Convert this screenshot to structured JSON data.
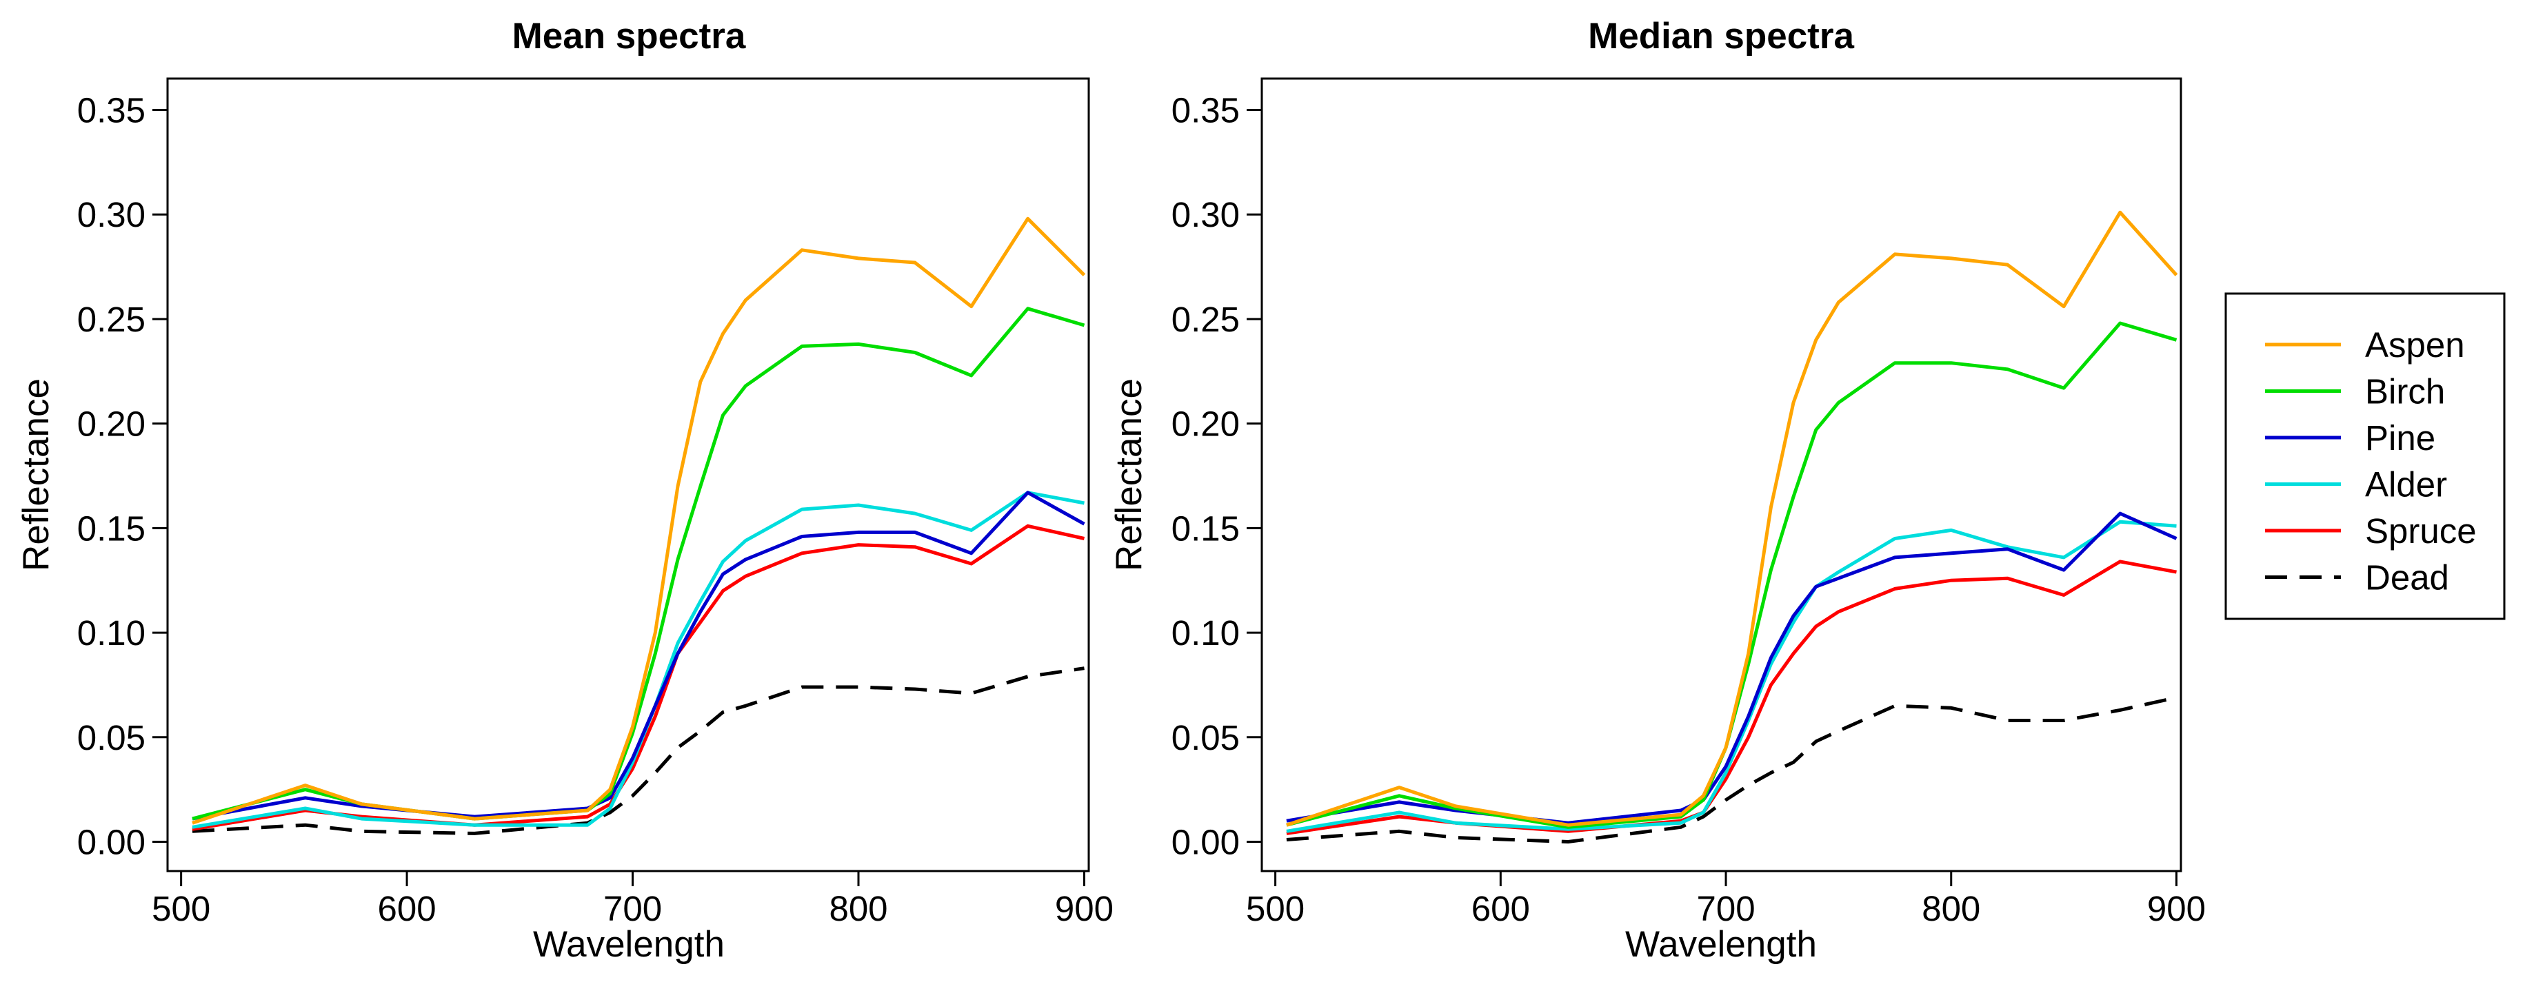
{
  "chart_data": [
    {
      "type": "line",
      "title": "Mean spectra",
      "xlabel": "Wavelength",
      "ylabel": "Reflectance",
      "xlim": [
        494,
        902
      ],
      "ylim": [
        -0.014,
        0.365
      ],
      "xticks": [
        500,
        600,
        700,
        800,
        900
      ],
      "xtick_labels": [
        "500",
        "600",
        "700",
        "800",
        "900"
      ],
      "yticks": [
        0.0,
        0.05,
        0.1,
        0.15,
        0.2,
        0.25,
        0.3,
        0.35
      ],
      "ytick_labels": [
        "0.00",
        "0.05",
        "0.10",
        "0.15",
        "0.20",
        "0.25",
        "0.30",
        "0.35"
      ],
      "x": [
        505,
        555,
        580,
        630,
        680,
        690,
        700,
        710,
        720,
        730,
        740,
        750,
        775,
        800,
        825,
        850,
        875,
        900
      ],
      "series": [
        {
          "name": "Aspen",
          "values": [
            0.009,
            0.027,
            0.018,
            0.011,
            0.015,
            0.025,
            0.055,
            0.1,
            0.17,
            0.22,
            0.243,
            0.259,
            0.283,
            0.279,
            0.277,
            0.256,
            0.298,
            0.271
          ]
        },
        {
          "name": "Birch",
          "values": [
            0.011,
            0.025,
            0.018,
            0.011,
            0.015,
            0.023,
            0.052,
            0.09,
            0.135,
            0.17,
            0.204,
            0.218,
            0.237,
            0.238,
            0.234,
            0.223,
            0.255,
            0.247
          ]
        },
        {
          "name": "Pine",
          "values": [
            0.011,
            0.021,
            0.017,
            0.012,
            0.016,
            0.021,
            0.04,
            0.065,
            0.09,
            0.11,
            0.128,
            0.135,
            0.146,
            0.148,
            0.148,
            0.138,
            0.167,
            0.152
          ]
        },
        {
          "name": "Alder",
          "values": [
            0.007,
            0.016,
            0.011,
            0.008,
            0.008,
            0.016,
            0.038,
            0.065,
            0.095,
            0.115,
            0.134,
            0.144,
            0.159,
            0.161,
            0.157,
            0.149,
            0.167,
            0.162
          ]
        },
        {
          "name": "Spruce",
          "values": [
            0.006,
            0.015,
            0.012,
            0.008,
            0.012,
            0.018,
            0.035,
            0.06,
            0.09,
            0.105,
            0.12,
            0.127,
            0.138,
            0.142,
            0.141,
            0.133,
            0.151,
            0.145
          ]
        },
        {
          "name": "Dead",
          "values": [
            0.005,
            0.008,
            0.005,
            0.004,
            0.009,
            0.014,
            0.022,
            0.033,
            0.045,
            0.053,
            0.062,
            0.065,
            0.074,
            0.074,
            0.073,
            0.071,
            0.079,
            0.083
          ]
        }
      ]
    },
    {
      "type": "line",
      "title": "Median spectra",
      "xlabel": "Wavelength",
      "ylabel": "Reflectance",
      "xlim": [
        494,
        902
      ],
      "ylim": [
        -0.014,
        0.365
      ],
      "xticks": [
        500,
        600,
        700,
        800,
        900
      ],
      "xtick_labels": [
        "500",
        "600",
        "700",
        "800",
        "900"
      ],
      "yticks": [
        0.0,
        0.05,
        0.1,
        0.15,
        0.2,
        0.25,
        0.3,
        0.35
      ],
      "ytick_labels": [
        "0.00",
        "0.05",
        "0.10",
        "0.15",
        "0.20",
        "0.25",
        "0.30",
        "0.35"
      ],
      "x": [
        505,
        555,
        580,
        630,
        680,
        690,
        700,
        710,
        720,
        730,
        740,
        750,
        775,
        800,
        825,
        850,
        875,
        900
      ],
      "series": [
        {
          "name": "Aspen",
          "values": [
            0.008,
            0.026,
            0.017,
            0.008,
            0.013,
            0.022,
            0.045,
            0.09,
            0.16,
            0.21,
            0.24,
            0.258,
            0.281,
            0.279,
            0.276,
            0.256,
            0.301,
            0.271
          ]
        },
        {
          "name": "Birch",
          "values": [
            0.008,
            0.022,
            0.016,
            0.007,
            0.012,
            0.02,
            0.045,
            0.085,
            0.13,
            0.165,
            0.197,
            0.21,
            0.229,
            0.229,
            0.226,
            0.217,
            0.248,
            0.24
          ]
        },
        {
          "name": "Pine",
          "values": [
            0.01,
            0.019,
            0.015,
            0.009,
            0.015,
            0.02,
            0.036,
            0.06,
            0.088,
            0.108,
            0.122,
            0.126,
            0.136,
            0.138,
            0.14,
            0.13,
            0.157,
            0.145
          ]
        },
        {
          "name": "Alder",
          "values": [
            0.005,
            0.014,
            0.009,
            0.006,
            0.009,
            0.014,
            0.033,
            0.058,
            0.085,
            0.105,
            0.122,
            0.129,
            0.145,
            0.149,
            0.141,
            0.136,
            0.153,
            0.151
          ]
        },
        {
          "name": "Spruce",
          "values": [
            0.004,
            0.012,
            0.009,
            0.005,
            0.01,
            0.014,
            0.03,
            0.05,
            0.075,
            0.09,
            0.103,
            0.11,
            0.121,
            0.125,
            0.126,
            0.118,
            0.134,
            0.129
          ]
        },
        {
          "name": "Dead",
          "values": [
            0.001,
            0.005,
            0.002,
            0.0,
            0.007,
            0.012,
            0.02,
            0.027,
            0.033,
            0.038,
            0.048,
            0.053,
            0.065,
            0.064,
            0.058,
            0.058,
            0.063,
            0.069
          ]
        }
      ]
    }
  ],
  "legend": {
    "position": "right",
    "entries": [
      {
        "name": "Aspen",
        "color": "#FFA500",
        "dash": "solid"
      },
      {
        "name": "Birch",
        "color": "#00DD00",
        "dash": "solid"
      },
      {
        "name": "Pine",
        "color": "#0000CD",
        "dash": "solid"
      },
      {
        "name": "Alder",
        "color": "#00DDDD",
        "dash": "solid"
      },
      {
        "name": "Spruce",
        "color": "#FF0000",
        "dash": "solid"
      },
      {
        "name": "Dead",
        "color": "#000000",
        "dash": "dashed"
      }
    ]
  }
}
